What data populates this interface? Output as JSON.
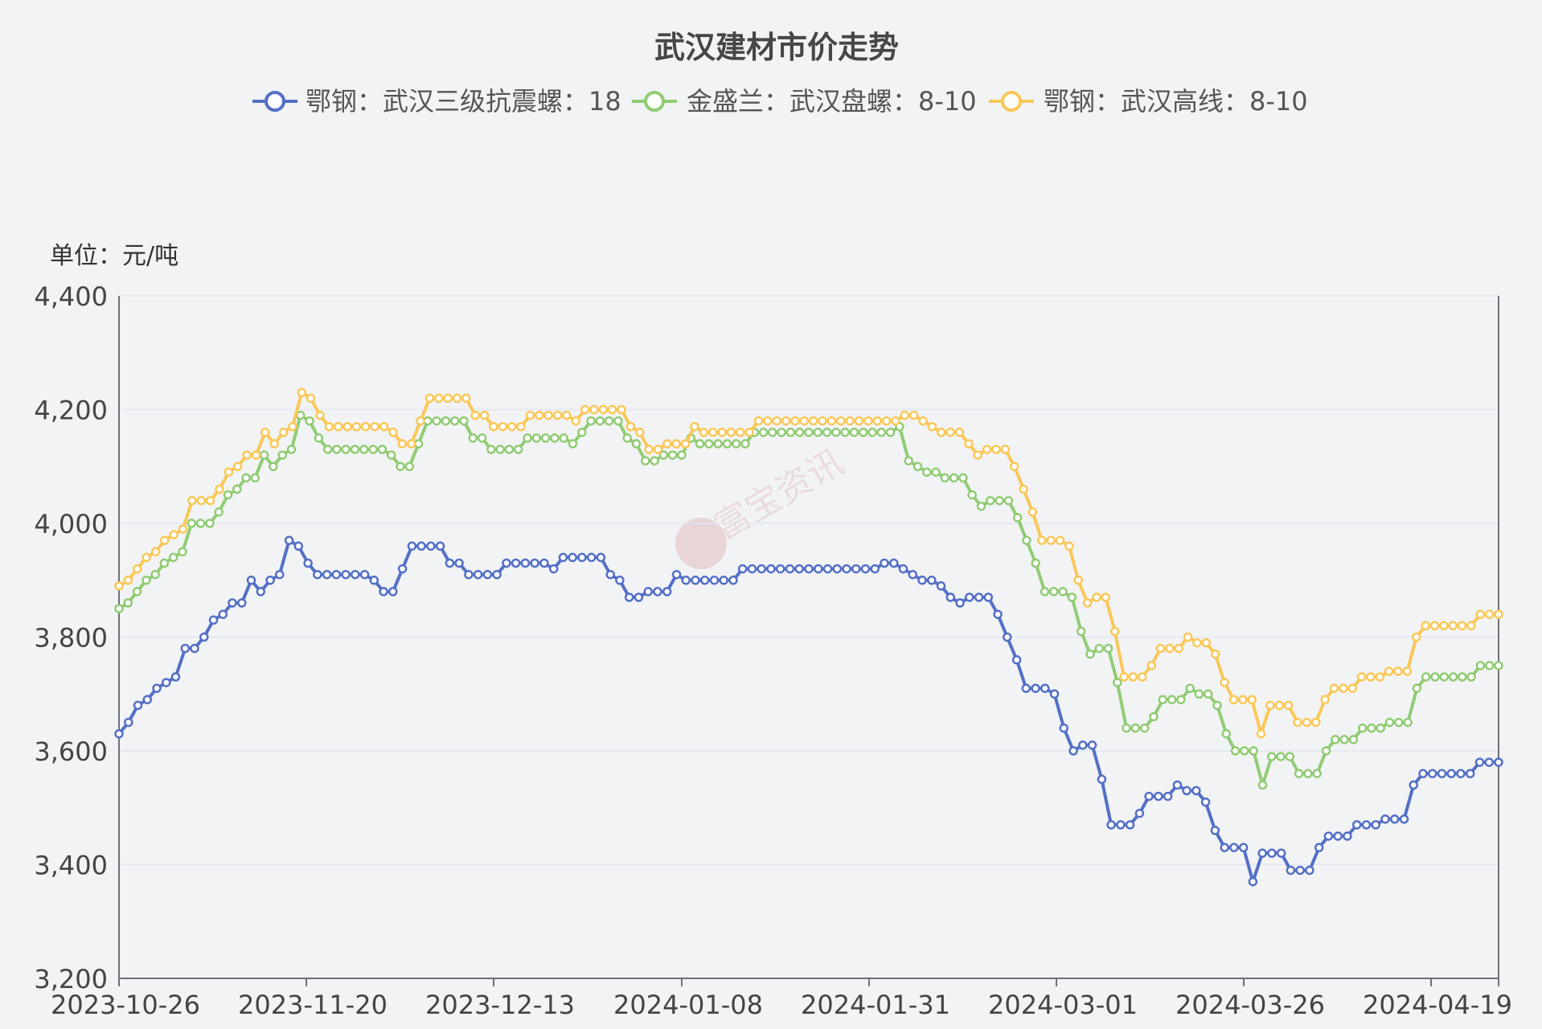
{
  "chart_data": {
    "type": "line",
    "title": "武汉建材市价走势",
    "unit_label": "单位：元/吨",
    "ylim": [
      3200,
      4400
    ],
    "y_ticks": [
      "3,200",
      "3,400",
      "3,600",
      "3,800",
      "4,000",
      "4,200",
      "4,400"
    ],
    "x_tick_labels": [
      "2023-10-26",
      "2023-11-20",
      "2023-12-13",
      "2024-01-08",
      "2024-01-31",
      "2024-03-01",
      "2024-03-26",
      "2024-04-19"
    ],
    "grid": true,
    "legend_position": "top-center",
    "watermark": "富宝资讯",
    "series": [
      {
        "name": "鄂钢：武汉三级抗震螺：18",
        "color": "#5470c6",
        "values": [
          3630,
          3650,
          3680,
          3690,
          3710,
          3720,
          3730,
          3780,
          3780,
          3800,
          3830,
          3840,
          3860,
          3860,
          3900,
          3880,
          3900,
          3910,
          3970,
          3960,
          3930,
          3910,
          3910,
          3910,
          3910,
          3910,
          3910,
          3900,
          3880,
          3880,
          3920,
          3960,
          3960,
          3960,
          3960,
          3930,
          3930,
          3910,
          3910,
          3910,
          3910,
          3930,
          3930,
          3930,
          3930,
          3930,
          3920,
          3940,
          3940,
          3940,
          3940,
          3940,
          3910,
          3900,
          3870,
          3870,
          3880,
          3880,
          3880,
          3910,
          3900,
          3900,
          3900,
          3900,
          3900,
          3900,
          3920,
          3920,
          3920,
          3920,
          3920,
          3920,
          3920,
          3920,
          3920,
          3920,
          3920,
          3920,
          3920,
          3920,
          3920,
          3930,
          3930,
          3920,
          3910,
          3900,
          3900,
          3890,
          3870,
          3860,
          3870,
          3870,
          3870,
          3840,
          3800,
          3760,
          3710,
          3710,
          3710,
          3700,
          3640,
          3600,
          3610,
          3610,
          3550,
          3470,
          3470,
          3470,
          3490,
          3520,
          3520,
          3520,
          3540,
          3530,
          3530,
          3510,
          3460,
          3430,
          3430,
          3430,
          3370,
          3420,
          3420,
          3420,
          3390,
          3390,
          3390,
          3430,
          3450,
          3450,
          3450,
          3470,
          3470,
          3470,
          3480,
          3480,
          3480,
          3540,
          3560,
          3560,
          3560,
          3560,
          3560,
          3560,
          3580,
          3580,
          3580
        ]
      },
      {
        "name": "金盛兰：武汉盘螺：8-10",
        "color": "#91cc75",
        "values": [
          3850,
          3860,
          3880,
          3900,
          3910,
          3930,
          3940,
          3950,
          4000,
          4000,
          4000,
          4020,
          4050,
          4060,
          4080,
          4080,
          4120,
          4100,
          4120,
          4130,
          4190,
          4180,
          4150,
          4130,
          4130,
          4130,
          4130,
          4130,
          4130,
          4130,
          4120,
          4100,
          4100,
          4140,
          4180,
          4180,
          4180,
          4180,
          4180,
          4150,
          4150,
          4130,
          4130,
          4130,
          4130,
          4150,
          4150,
          4150,
          4150,
          4150,
          4140,
          4160,
          4180,
          4180,
          4180,
          4180,
          4150,
          4140,
          4110,
          4110,
          4120,
          4120,
          4120,
          4150,
          4140,
          4140,
          4140,
          4140,
          4140,
          4140,
          4160,
          4160,
          4160,
          4160,
          4160,
          4160,
          4160,
          4160,
          4160,
          4160,
          4160,
          4160,
          4160,
          4160,
          4160,
          4160,
          4170,
          4110,
          4100,
          4090,
          4090,
          4080,
          4080,
          4080,
          4050,
          4030,
          4040,
          4040,
          4040,
          4010,
          3970,
          3930,
          3880,
          3880,
          3880,
          3870,
          3810,
          3770,
          3780,
          3780,
          3720,
          3640,
          3640,
          3640,
          3660,
          3690,
          3690,
          3690,
          3710,
          3700,
          3700,
          3680,
          3630,
          3600,
          3600,
          3600,
          3540,
          3590,
          3590,
          3590,
          3560,
          3560,
          3560,
          3600,
          3620,
          3620,
          3620,
          3640,
          3640,
          3640,
          3650,
          3650,
          3650,
          3710,
          3730,
          3730,
          3730,
          3730,
          3730,
          3730,
          3750,
          3750,
          3750
        ]
      },
      {
        "name": "鄂钢：武汉高线：8-10",
        "color": "#fac858",
        "values": [
          3890,
          3900,
          3920,
          3940,
          3950,
          3970,
          3980,
          3990,
          4040,
          4040,
          4040,
          4060,
          4090,
          4100,
          4120,
          4120,
          4160,
          4140,
          4160,
          4170,
          4230,
          4220,
          4190,
          4170,
          4170,
          4170,
          4170,
          4170,
          4170,
          4170,
          4160,
          4140,
          4140,
          4180,
          4220,
          4220,
          4220,
          4220,
          4220,
          4190,
          4190,
          4170,
          4170,
          4170,
          4170,
          4190,
          4190,
          4190,
          4190,
          4190,
          4180,
          4200,
          4200,
          4200,
          4200,
          4200,
          4170,
          4160,
          4130,
          4130,
          4140,
          4140,
          4140,
          4170,
          4160,
          4160,
          4160,
          4160,
          4160,
          4160,
          4180,
          4180,
          4180,
          4180,
          4180,
          4180,
          4180,
          4180,
          4180,
          4180,
          4180,
          4180,
          4180,
          4180,
          4180,
          4180,
          4190,
          4190,
          4180,
          4170,
          4160,
          4160,
          4160,
          4140,
          4120,
          4130,
          4130,
          4130,
          4100,
          4060,
          4020,
          3970,
          3970,
          3970,
          3960,
          3900,
          3860,
          3870,
          3870,
          3810,
          3730,
          3730,
          3730,
          3750,
          3780,
          3780,
          3780,
          3800,
          3790,
          3790,
          3770,
          3720,
          3690,
          3690,
          3690,
          3630,
          3680,
          3680,
          3680,
          3650,
          3650,
          3650,
          3690,
          3710,
          3710,
          3710,
          3730,
          3730,
          3730,
          3740,
          3740,
          3740,
          3800,
          3820,
          3820,
          3820,
          3820,
          3820,
          3820,
          3840,
          3840,
          3840
        ]
      }
    ]
  }
}
